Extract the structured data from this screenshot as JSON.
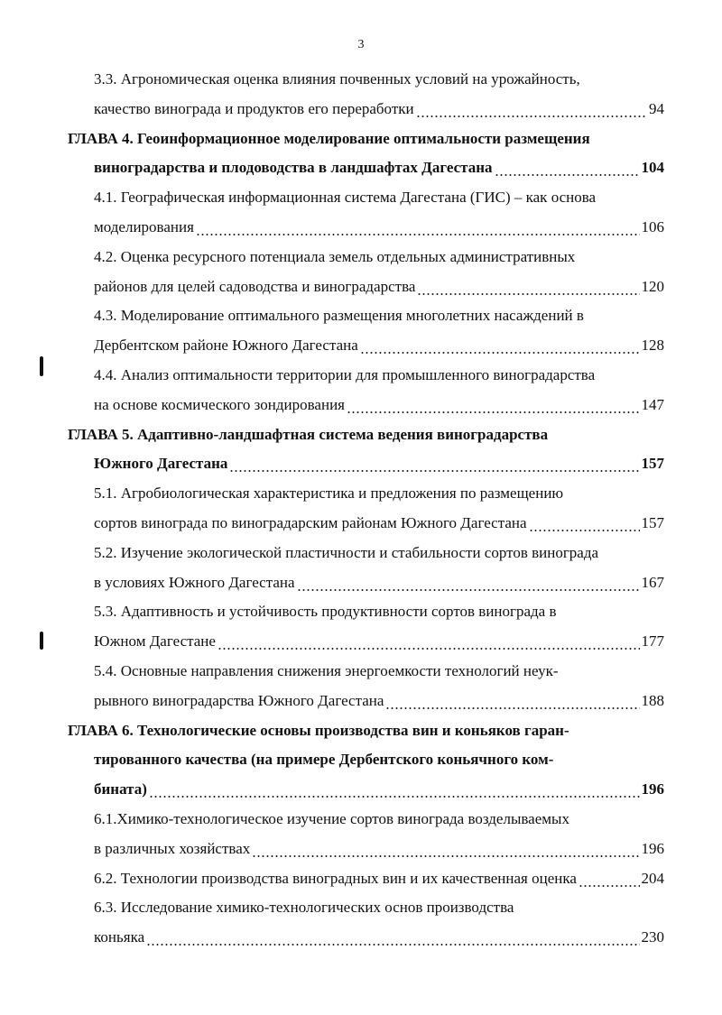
{
  "page_number": "3",
  "leading_sections": [
    {
      "lines": [
        "3.3. Агрономическая оценка влияния почвенных условий на урожайность,",
        "качество винограда и продуктов его переработки"
      ],
      "page": 94
    }
  ],
  "chapters": [
    {
      "lines": [
        "ГЛАВА 4. Геоинформационное моделирование оптимальности размещения",
        "виноградарства и плодоводства в ландшафтах Дагестана"
      ],
      "page": 104,
      "sections": [
        {
          "lines": [
            "4.1. Географическая информационная система Дагестана (ГИС) – как основа",
            "моделирования"
          ],
          "page": 106
        },
        {
          "lines": [
            "4.2. Оценка ресурсного потенциала земель отдельных административных",
            "районов для целей садоводства и виноградарства"
          ],
          "page": 120
        },
        {
          "lines": [
            "4.3. Моделирование оптимального размещения многолетних насаждений в",
            "Дербентском районе Южного Дагестана"
          ],
          "page": 128
        },
        {
          "lines": [
            "4.4. Анализ оптимальности территории для промышленного виноградарства",
            "на основе космического зондирования"
          ],
          "page": 147
        }
      ]
    },
    {
      "lines": [
        "ГЛАВА 5. Адаптивно-ландшафтная система ведения виноградарства",
        "Южного Дагестана"
      ],
      "page": 157,
      "sections": [
        {
          "lines": [
            "5.1. Агробиологическая характеристика и предложения по размещению",
            "сортов винограда по виноградарским районам Южного Дагестана"
          ],
          "page": 157
        },
        {
          "lines": [
            "5.2. Изучение экологической пластичности и стабильности сортов винограда",
            "в условиях Южного Дагестана"
          ],
          "page": 167
        },
        {
          "lines": [
            "5.3. Адаптивность и устойчивость продуктивности сортов винограда в",
            "Южном Дагестане"
          ],
          "page": 177
        },
        {
          "lines": [
            "5.4. Основные направления снижения энергоемкости технологий неук-",
            "рывного виноградарства Южного Дагестана"
          ],
          "page": 188
        }
      ]
    },
    {
      "lines": [
        "ГЛАВА 6. Технологические основы производства вин и коньяков гаран-",
        "тированного качества (на примере Дербентского коньячного ком-",
        "бината)"
      ],
      "page": 196,
      "sections": [
        {
          "lines": [
            "6.1.Химико-технологическое изучение сортов винограда возделываемых",
            "в различных хозяйствах"
          ],
          "page": 196
        },
        {
          "lines": [
            "6.2. Технологии производства виноградных вин и их качественная оценка"
          ],
          "page": 204
        },
        {
          "lines": [
            "6.3. Исследование химико-технологических основ производства",
            "коньяка"
          ],
          "page": 230
        }
      ]
    }
  ]
}
